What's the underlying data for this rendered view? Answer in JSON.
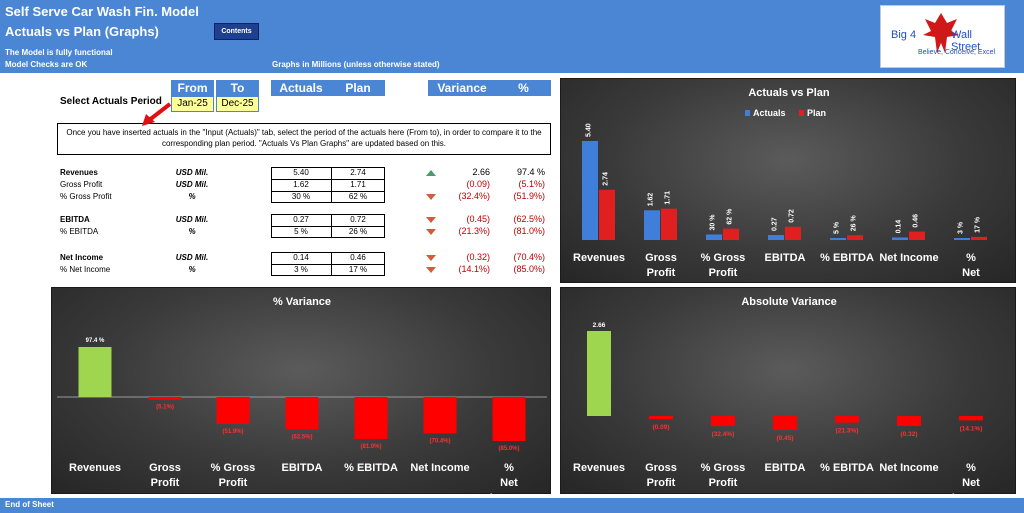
{
  "header": {
    "model_title": "Self Serve Car Wash Fin. Model",
    "page_title": "Actuals vs Plan (Graphs)",
    "contents_label": "Contents",
    "status_line1": "The Model is fully functional",
    "status_line2": "Model Checks are OK",
    "units_note": "Graphs in Millions (unless otherwise stated)"
  },
  "logo": {
    "word1": "Big 4",
    "word2": "Wall Street",
    "tagline": "Believe, Conceive, Excel"
  },
  "period": {
    "label": "Select Actuals Period",
    "from_label": "From",
    "to_label": "To",
    "from_value": "Jan-25",
    "to_value": "Dec-25"
  },
  "table_headers": {
    "actuals": "Actuals",
    "plan": "Plan",
    "variance": "Variance",
    "pct": "%"
  },
  "instruction": "Once you have inserted actuals in the \"Input (Actuals)\" tab, select the period of the actuals here (From to), in order to compare it to the corresponding plan period. \"Actuals Vs Plan Graphs\" are updated based on this.",
  "rows": [
    {
      "label": "Revenues",
      "unit": "USD Mil.",
      "actual": "5.40",
      "plan": "2.74",
      "variance": "2.66",
      "pct": "97.4 %",
      "trend": "up"
    },
    {
      "label": "Gross Profit",
      "unit": "USD Mil.",
      "actual": "1.62",
      "plan": "1.71",
      "variance": "(0.09)",
      "pct": "(5.1%)",
      "trend": "none"
    },
    {
      "label": "% Gross Profit",
      "unit": "%",
      "actual": "30 %",
      "plan": "62 %",
      "variance": "(32.4%)",
      "pct": "(51.9%)",
      "trend": "down"
    },
    {
      "label": "EBITDA",
      "unit": "USD Mil.",
      "actual": "0.27",
      "plan": "0.72",
      "variance": "(0.45)",
      "pct": "(62.5%)",
      "trend": "down"
    },
    {
      "label": "% EBITDA",
      "unit": "%",
      "actual": "5 %",
      "plan": "26 %",
      "variance": "(21.3%)",
      "pct": "(81.0%)",
      "trend": "down"
    },
    {
      "label": "Net Income",
      "unit": "USD Mil.",
      "actual": "0.14",
      "plan": "0.46",
      "variance": "(0.32)",
      "pct": "(70.4%)",
      "trend": "down"
    },
    {
      "label": "% Net Income",
      "unit": "%",
      "actual": "3 %",
      "plan": "17 %",
      "variance": "(14.1%)",
      "pct": "(85.0%)",
      "trend": "down"
    }
  ],
  "footer": "End of Sheet",
  "colors": {
    "header_blue": "#4a86d4",
    "actual_blue": "#3f7fd9",
    "plan_red": "#e02020",
    "pos_green": "#9fd64f",
    "neg_red": "#ff0000"
  },
  "chart_data": [
    {
      "type": "bar",
      "title": "Actuals vs Plan",
      "legend_position": "top",
      "categories": [
        "Revenues",
        "Gross Profit",
        "% Gross Profit",
        "EBITDA",
        "% EBITDA",
        "Net Income",
        "% Net Income"
      ],
      "series": [
        {
          "name": "Actuals",
          "values": [
            5.4,
            1.62,
            0.3,
            0.27,
            0.05,
            0.14,
            0.03
          ],
          "labels": [
            "5.40",
            "1.62",
            "30 %",
            "0.27",
            "5 %",
            "0.14",
            "3 %"
          ]
        },
        {
          "name": "Plan",
          "values": [
            2.74,
            1.71,
            0.62,
            0.72,
            0.26,
            0.46,
            0.17
          ],
          "labels": [
            "2.74",
            "1.71",
            "62 %",
            "0.72",
            "26 %",
            "0.46",
            "17 %"
          ]
        }
      ],
      "ylim": [
        0,
        6
      ],
      "grid": false
    },
    {
      "type": "bar",
      "title": "% Variance",
      "categories": [
        "Revenues",
        "Gross Profit",
        "% Gross Profit",
        "EBITDA",
        "% EBITDA",
        "Net Income",
        "% Net Income"
      ],
      "values": [
        97.4,
        -5.1,
        -51.9,
        -62.5,
        -81.0,
        -70.4,
        -85.0
      ],
      "labels": [
        "97.4 %",
        "(5.1%)",
        "(51.9%)",
        "(62.5%)",
        "(81.0%)",
        "(70.4%)",
        "(85.0%)"
      ],
      "ylim": [
        -100,
        100
      ],
      "grid": false
    },
    {
      "type": "bar",
      "title": "Absolute Variance",
      "categories": [
        "Revenues",
        "Gross Profit",
        "% Gross Profit",
        "EBITDA",
        "% EBITDA",
        "Net Income",
        "% Net Income"
      ],
      "values": [
        2.66,
        -0.09,
        -0.324,
        -0.45,
        -0.213,
        -0.32,
        -0.141
      ],
      "labels": [
        "2.66",
        "(0.09)",
        "(32.4%)",
        "(0.45)",
        "(21.3%)",
        "(0.32)",
        "(14.1%)"
      ],
      "ylim": [
        -1,
        3
      ],
      "grid": false
    }
  ]
}
